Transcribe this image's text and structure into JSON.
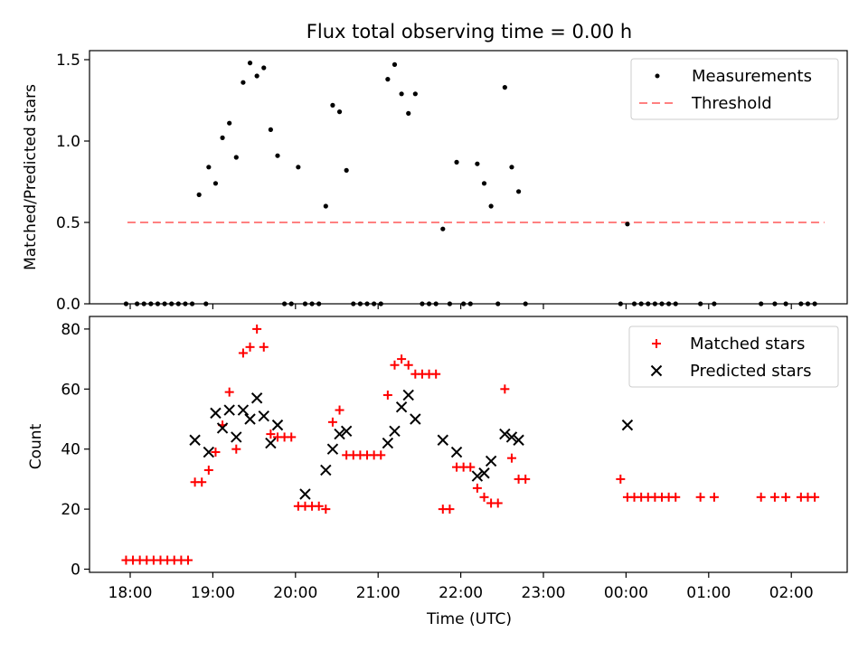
{
  "title": "Flux total observing time = 0.00 h",
  "colors": {
    "measurement": "#000000",
    "threshold": "#ff8080",
    "matched": "#ff0000",
    "predicted": "#000000"
  },
  "chart_data": [
    {
      "type": "scatter",
      "ylabel": "Matched/Predicted stars",
      "xlabel": "",
      "ylim": [
        0,
        1.56
      ],
      "yticks": [
        "0.0",
        "0.5",
        "1.0",
        "1.5"
      ],
      "legend_position": "top-right",
      "legend": [
        "Measurements",
        "Threshold"
      ],
      "threshold": {
        "name": "Threshold",
        "value": 0.5,
        "x_start": "17:58",
        "x_end": "02:24"
      },
      "series": [
        {
          "name": "Measurements",
          "points": [
            [
              "17:57",
              0
            ],
            [
              "18:05",
              0
            ],
            [
              "18:10",
              0
            ],
            [
              "18:15",
              0
            ],
            [
              "18:20",
              0
            ],
            [
              "18:25",
              0
            ],
            [
              "18:30",
              0
            ],
            [
              "18:35",
              0
            ],
            [
              "18:40",
              0
            ],
            [
              "18:45",
              0
            ],
            [
              "18:50",
              0.67
            ],
            [
              "18:55",
              0
            ],
            [
              "18:57",
              0.84
            ],
            [
              "19:02",
              0.74
            ],
            [
              "19:07",
              1.02
            ],
            [
              "19:12",
              1.11
            ],
            [
              "19:17",
              0.9
            ],
            [
              "19:22",
              1.36
            ],
            [
              "19:27",
              1.48
            ],
            [
              "19:32",
              1.4
            ],
            [
              "19:37",
              1.45
            ],
            [
              "19:42",
              1.07
            ],
            [
              "19:47",
              0.91
            ],
            [
              "19:52",
              0
            ],
            [
              "19:57",
              0
            ],
            [
              "20:02",
              0.84
            ],
            [
              "20:07",
              0
            ],
            [
              "20:12",
              0
            ],
            [
              "20:17",
              0
            ],
            [
              "20:22",
              0.6
            ],
            [
              "20:27",
              1.22
            ],
            [
              "20:32",
              1.18
            ],
            [
              "20:37",
              0.82
            ],
            [
              "20:42",
              0
            ],
            [
              "20:47",
              0
            ],
            [
              "20:52",
              0
            ],
            [
              "20:57",
              0
            ],
            [
              "21:02",
              0
            ],
            [
              "21:07",
              1.38
            ],
            [
              "21:12",
              1.47
            ],
            [
              "21:17",
              1.29
            ],
            [
              "21:22",
              1.17
            ],
            [
              "21:27",
              1.29
            ],
            [
              "21:32",
              0
            ],
            [
              "21:37",
              0
            ],
            [
              "21:42",
              0
            ],
            [
              "21:47",
              0.46
            ],
            [
              "21:52",
              0
            ],
            [
              "21:57",
              0.87
            ],
            [
              "22:02",
              0
            ],
            [
              "22:07",
              0
            ],
            [
              "22:12",
              0.86
            ],
            [
              "22:17",
              0.74
            ],
            [
              "22:22",
              0.6
            ],
            [
              "22:27",
              0
            ],
            [
              "22:32",
              1.33
            ],
            [
              "22:37",
              0.84
            ],
            [
              "22:42",
              0.69
            ],
            [
              "22:47",
              0
            ],
            [
              "23:56",
              0
            ],
            [
              "00:01",
              0.49
            ],
            [
              "00:06",
              0
            ],
            [
              "00:11",
              0
            ],
            [
              "00:16",
              0
            ],
            [
              "00:21",
              0
            ],
            [
              "00:26",
              0
            ],
            [
              "00:31",
              0
            ],
            [
              "00:36",
              0
            ],
            [
              "00:54",
              0
            ],
            [
              "01:04",
              0
            ],
            [
              "01:38",
              0
            ],
            [
              "01:48",
              0
            ],
            [
              "01:56",
              0
            ],
            [
              "02:07",
              0
            ],
            [
              "02:12",
              0
            ],
            [
              "02:17",
              0
            ]
          ]
        }
      ]
    },
    {
      "type": "scatter",
      "ylabel": "Count",
      "xlabel": "Time (UTC)",
      "ylim": [
        -1,
        85
      ],
      "yticks": [
        "0",
        "20",
        "40",
        "60",
        "80"
      ],
      "xticks": [
        "18:00",
        "19:00",
        "20:00",
        "21:00",
        "22:00",
        "23:00",
        "00:00",
        "01:00",
        "02:00"
      ],
      "legend_position": "top-right",
      "legend": [
        "Matched stars",
        "Predicted stars"
      ],
      "series": [
        {
          "name": "Matched stars",
          "points": [
            [
              "17:57",
              3
            ],
            [
              "18:02",
              3
            ],
            [
              "18:07",
              3
            ],
            [
              "18:12",
              3
            ],
            [
              "18:17",
              3
            ],
            [
              "18:22",
              3
            ],
            [
              "18:27",
              3
            ],
            [
              "18:32",
              3
            ],
            [
              "18:37",
              3
            ],
            [
              "18:42",
              3
            ],
            [
              "18:47",
              29
            ],
            [
              "18:52",
              29
            ],
            [
              "18:57",
              33
            ],
            [
              "19:02",
              39
            ],
            [
              "19:07",
              48
            ],
            [
              "19:12",
              59
            ],
            [
              "19:17",
              40
            ],
            [
              "19:22",
              72
            ],
            [
              "19:27",
              74
            ],
            [
              "19:32",
              80
            ],
            [
              "19:37",
              74
            ],
            [
              "19:42",
              45
            ],
            [
              "19:47",
              44
            ],
            [
              "19:52",
              44
            ],
            [
              "19:57",
              44
            ],
            [
              "20:02",
              21
            ],
            [
              "20:07",
              21
            ],
            [
              "20:12",
              21
            ],
            [
              "20:17",
              21
            ],
            [
              "20:22",
              20
            ],
            [
              "20:27",
              49
            ],
            [
              "20:32",
              53
            ],
            [
              "20:37",
              38
            ],
            [
              "20:42",
              38
            ],
            [
              "20:47",
              38
            ],
            [
              "20:52",
              38
            ],
            [
              "20:57",
              38
            ],
            [
              "21:02",
              38
            ],
            [
              "21:07",
              58
            ],
            [
              "21:12",
              68
            ],
            [
              "21:17",
              70
            ],
            [
              "21:22",
              68
            ],
            [
              "21:27",
              65
            ],
            [
              "21:32",
              65
            ],
            [
              "21:37",
              65
            ],
            [
              "21:42",
              65
            ],
            [
              "21:47",
              20
            ],
            [
              "21:52",
              20
            ],
            [
              "21:57",
              34
            ],
            [
              "22:02",
              34
            ],
            [
              "22:07",
              34
            ],
            [
              "22:12",
              27
            ],
            [
              "22:17",
              24
            ],
            [
              "22:22",
              22
            ],
            [
              "22:27",
              22
            ],
            [
              "22:32",
              60
            ],
            [
              "22:37",
              37
            ],
            [
              "22:42",
              30
            ],
            [
              "22:47",
              30
            ],
            [
              "23:56",
              30
            ],
            [
              "00:01",
              24
            ],
            [
              "00:06",
              24
            ],
            [
              "00:11",
              24
            ],
            [
              "00:16",
              24
            ],
            [
              "00:21",
              24
            ],
            [
              "00:26",
              24
            ],
            [
              "00:31",
              24
            ],
            [
              "00:36",
              24
            ],
            [
              "00:54",
              24
            ],
            [
              "01:04",
              24
            ],
            [
              "01:38",
              24
            ],
            [
              "01:48",
              24
            ],
            [
              "01:56",
              24
            ],
            [
              "02:07",
              24
            ],
            [
              "02:12",
              24
            ],
            [
              "02:17",
              24
            ]
          ]
        },
        {
          "name": "Predicted stars",
          "points": [
            [
              "18:47",
              43
            ],
            [
              "18:57",
              39
            ],
            [
              "19:02",
              52
            ],
            [
              "19:07",
              47
            ],
            [
              "19:12",
              53
            ],
            [
              "19:17",
              44
            ],
            [
              "19:22",
              53
            ],
            [
              "19:27",
              50
            ],
            [
              "19:32",
              57
            ],
            [
              "19:37",
              51
            ],
            [
              "19:42",
              42
            ],
            [
              "19:47",
              48
            ],
            [
              "20:07",
              25
            ],
            [
              "20:22",
              33
            ],
            [
              "20:27",
              40
            ],
            [
              "20:32",
              45
            ],
            [
              "20:37",
              46
            ],
            [
              "21:07",
              42
            ],
            [
              "21:12",
              46
            ],
            [
              "21:17",
              54
            ],
            [
              "21:22",
              58
            ],
            [
              "21:27",
              50
            ],
            [
              "21:47",
              43
            ],
            [
              "21:57",
              39
            ],
            [
              "22:12",
              31
            ],
            [
              "22:17",
              32
            ],
            [
              "22:22",
              36
            ],
            [
              "22:32",
              45
            ],
            [
              "22:37",
              44
            ],
            [
              "22:42",
              43
            ],
            [
              "00:01",
              48
            ]
          ]
        }
      ]
    }
  ]
}
